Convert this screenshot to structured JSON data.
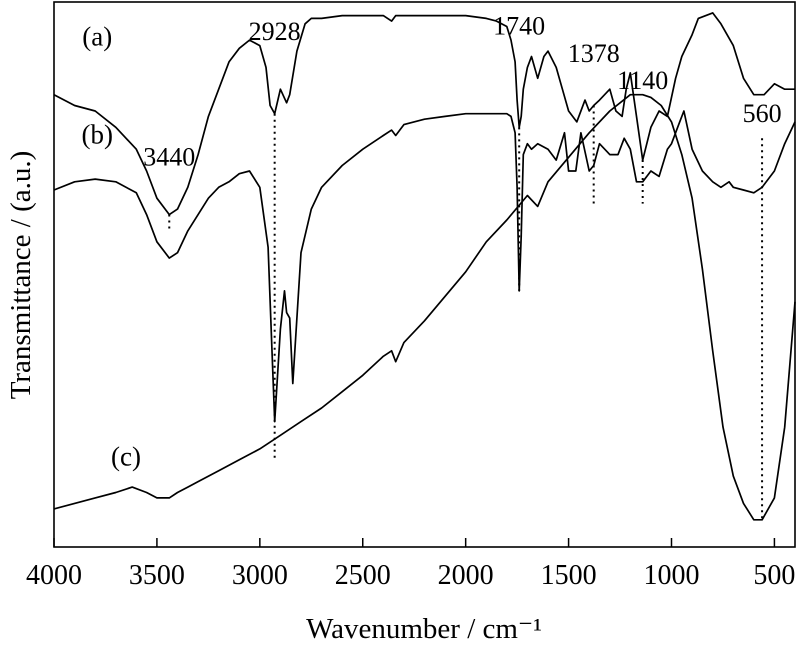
{
  "chart_data": {
    "type": "line",
    "title": "",
    "xlabel": "Wavenumber / cm⁻¹",
    "ylabel": "Transmittance / (a.u.)",
    "xlim": [
      4000,
      400
    ],
    "x_reversed": true,
    "ylim": [
      0,
      100
    ],
    "y_ticks_shown": false,
    "grid": false,
    "legend": "none",
    "x_ticks": [
      4000,
      3500,
      3000,
      2500,
      2000,
      1500,
      1000,
      500
    ],
    "x_tick_labels": [
      "4000",
      "3500",
      "3000",
      "2500",
      "2000",
      "1500",
      "1000",
      "500"
    ],
    "series": [
      {
        "name": "(a)",
        "color": "#000000",
        "x": [
          4000,
          3900,
          3800,
          3700,
          3600,
          3550,
          3500,
          3440,
          3400,
          3350,
          3300,
          3250,
          3200,
          3150,
          3100,
          3050,
          3000,
          2970,
          2950,
          2928,
          2900,
          2870,
          2855,
          2820,
          2780,
          2750,
          2700,
          2600,
          2500,
          2400,
          2360,
          2340,
          2300,
          2200,
          2100,
          2000,
          1900,
          1850,
          1800,
          1780,
          1760,
          1750,
          1740,
          1730,
          1720,
          1700,
          1680,
          1650,
          1620,
          1600,
          1560,
          1530,
          1500,
          1460,
          1420,
          1400,
          1378,
          1350,
          1300,
          1270,
          1240,
          1220,
          1200,
          1170,
          1140,
          1100,
          1060,
          1020,
          980,
          950,
          900,
          870,
          800,
          760,
          700,
          650,
          600,
          550,
          500,
          450,
          400
        ],
        "y": [
          83,
          81,
          80,
          77,
          73,
          69,
          64,
          61,
          62,
          66,
          72,
          79,
          84,
          89,
          91.5,
          93,
          92,
          88,
          81,
          79.5,
          84,
          81.5,
          83,
          91,
          96,
          97,
          97,
          97.5,
          97.5,
          97.5,
          96.5,
          97.5,
          97.5,
          97.5,
          97.5,
          97.5,
          97,
          96.5,
          95.5,
          93,
          89,
          82,
          77,
          79,
          84,
          88,
          90,
          86,
          90,
          91,
          88,
          84,
          80,
          78,
          82,
          80,
          81,
          82,
          84,
          80,
          79,
          84,
          87,
          79,
          71,
          77,
          80,
          79,
          86,
          90,
          94,
          97,
          98,
          96,
          92,
          86,
          83,
          83,
          85,
          84,
          84
        ]
      },
      {
        "name": "(b)",
        "color": "#000000",
        "x": [
          4000,
          3900,
          3800,
          3700,
          3600,
          3550,
          3500,
          3440,
          3400,
          3350,
          3300,
          3250,
          3200,
          3150,
          3100,
          3050,
          3000,
          2960,
          2940,
          2928,
          2900,
          2880,
          2870,
          2855,
          2840,
          2800,
          2750,
          2700,
          2600,
          2500,
          2400,
          2360,
          2340,
          2300,
          2200,
          2100,
          2000,
          1900,
          1850,
          1800,
          1780,
          1760,
          1750,
          1740,
          1730,
          1720,
          1700,
          1680,
          1650,
          1600,
          1560,
          1520,
          1500,
          1465,
          1440,
          1400,
          1378,
          1350,
          1300,
          1260,
          1230,
          1200,
          1170,
          1140,
          1100,
          1060,
          1020,
          1000,
          960,
          940,
          900,
          850,
          800,
          760,
          720,
          700,
          650,
          600,
          560,
          500,
          450,
          400
        ],
        "y": [
          65.5,
          67,
          67.5,
          67,
          65,
          61,
          56,
          53,
          54,
          58,
          61,
          64,
          66,
          67,
          68.5,
          69,
          66,
          55,
          35,
          23,
          40,
          47,
          43,
          42,
          30,
          54,
          62,
          66,
          70,
          73,
          75.5,
          76.5,
          75.5,
          77.5,
          78.5,
          79,
          79.5,
          79.5,
          79.5,
          79.5,
          79,
          76,
          66,
          47,
          57,
          72,
          74,
          73,
          74,
          73,
          71,
          76,
          69,
          69,
          76,
          69,
          70,
          74,
          72,
          72,
          75,
          73,
          67,
          67,
          69,
          68,
          73,
          74,
          78,
          80,
          73,
          69,
          67,
          66,
          67,
          66,
          65.5,
          65,
          66,
          69,
          74,
          78
        ]
      },
      {
        "name": "(c)",
        "color": "#000000",
        "x": [
          4000,
          3900,
          3800,
          3700,
          3620,
          3550,
          3500,
          3440,
          3400,
          3350,
          3300,
          3200,
          3100,
          3000,
          2900,
          2800,
          2700,
          2600,
          2500,
          2400,
          2360,
          2340,
          2300,
          2200,
          2100,
          2000,
          1900,
          1800,
          1700,
          1650,
          1600,
          1500,
          1400,
          1300,
          1200,
          1140,
          1100,
          1050,
          1000,
          950,
          900,
          850,
          800,
          750,
          700,
          650,
          600,
          560,
          500,
          450,
          400
        ],
        "y": [
          7,
          8,
          9,
          10,
          11,
          10,
          9,
          9,
          10,
          11,
          12,
          14,
          16,
          18,
          20.5,
          23,
          25.5,
          28.5,
          31.5,
          35,
          36,
          34,
          37.5,
          41.5,
          46,
          50.5,
          56,
          60,
          64.5,
          62.5,
          67,
          71.5,
          76,
          80,
          83,
          83,
          82.5,
          81,
          78,
          72,
          64,
          51,
          36,
          22,
          13,
          8,
          5,
          5,
          9,
          22,
          45
        ]
      }
    ],
    "annotations": [
      {
        "text": "3440",
        "x": 3440,
        "line_y": [
          58,
          61
        ],
        "label_y": 70
      },
      {
        "text": "2928",
        "x": 2928,
        "line_y": [
          16,
          79.5
        ],
        "label_y": 93
      },
      {
        "text": "1740",
        "x": 1740,
        "line_y": [
          47,
          77
        ],
        "label_y": 94
      },
      {
        "text": "1378",
        "x": 1378,
        "line_y": [
          63,
          81
        ],
        "label_y": 89
      },
      {
        "text": "1140",
        "x": 1140,
        "line_y": [
          63,
          71
        ],
        "label_y": 84
      },
      {
        "text": "560",
        "x": 560,
        "line_y": [
          5,
          75
        ],
        "label_y": 78
      }
    ],
    "curve_labels": [
      {
        "text": "(a)",
        "x": 3790,
        "y": 92
      },
      {
        "text": "(b)",
        "x": 3790,
        "y": 74
      },
      {
        "text": "(c)",
        "x": 3650,
        "y": 15
      }
    ]
  }
}
